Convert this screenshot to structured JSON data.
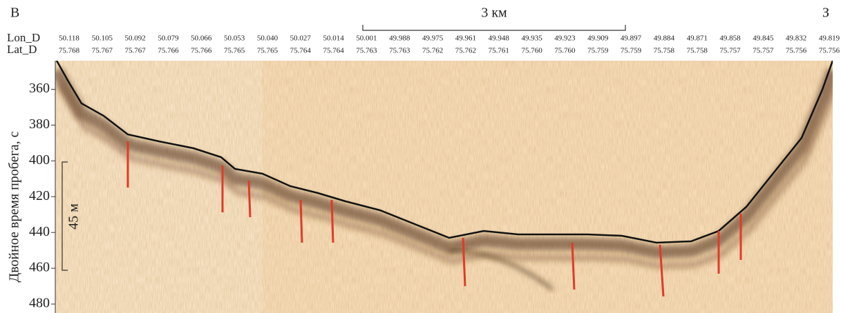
{
  "chart_data": {
    "type": "profile",
    "left_label": "В",
    "right_label": "З",
    "distance_scale": "3 км",
    "depth_scale": "45 м",
    "ylabel": "Двойное время пробега, с",
    "ylim": [
      344,
      485
    ],
    "yticks": [
      360,
      380,
      400,
      420,
      440,
      460,
      480
    ],
    "lon_label": "Lon_D",
    "lat_label": "Lat_D",
    "lon": [
      "50.118",
      "50.105",
      "50.092",
      "50.079",
      "50.066",
      "50.053",
      "50.040",
      "50.027",
      "50.014",
      "50.001",
      "49.988",
      "49.975",
      "49.961",
      "49.948",
      "49.935",
      "49.923",
      "49.909",
      "49.897",
      "49.884",
      "49.871",
      "49.858",
      "49.845",
      "49.832",
      "49.819"
    ],
    "lat": [
      "75.768",
      "75.767",
      "75.767",
      "75.766",
      "75.766",
      "75.765",
      "75.765",
      "75.764",
      "75.764",
      "75.763",
      "75.763",
      "75.762",
      "75.762",
      "75.761",
      "75.760",
      "75.760",
      "75.759",
      "75.759",
      "75.758",
      "75.758",
      "75.757",
      "75.757",
      "75.756",
      "75.756"
    ]
  }
}
